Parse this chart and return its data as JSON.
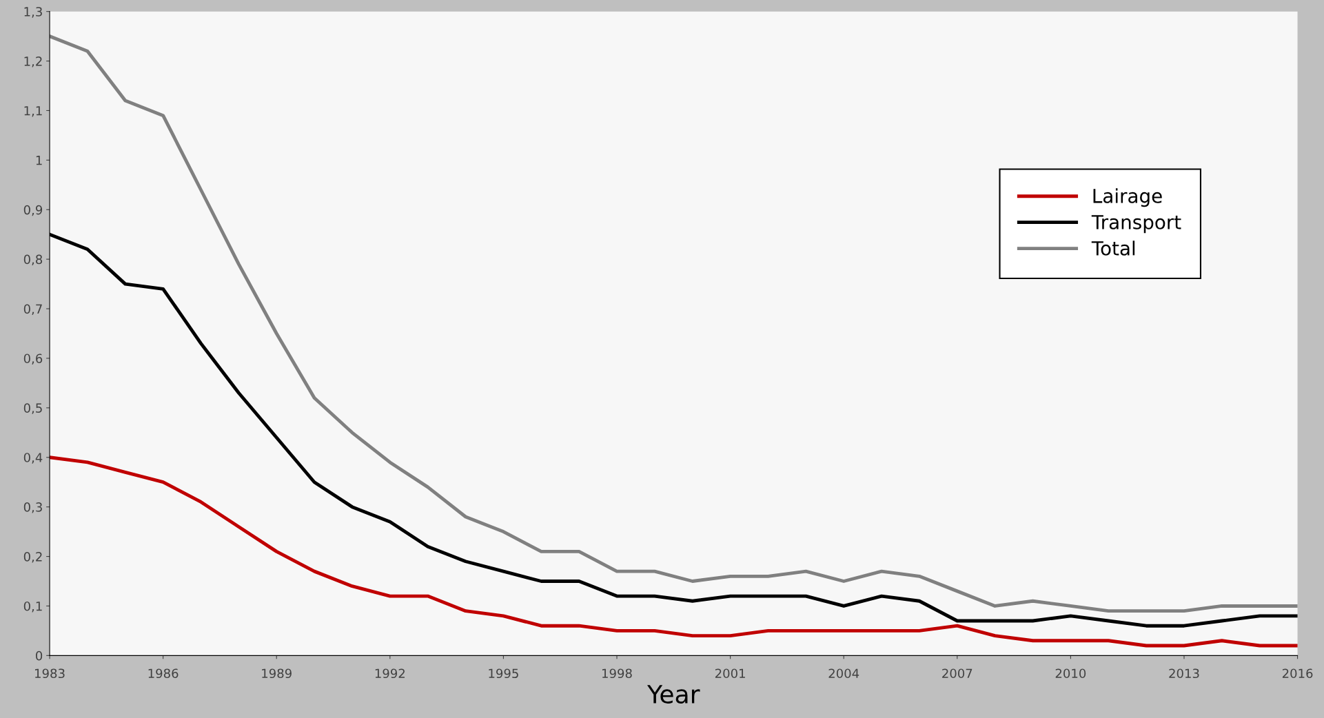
{
  "chart_data": {
    "type": "line",
    "xlabel": "Year",
    "x": [
      1983,
      1984,
      1985,
      1986,
      1987,
      1988,
      1989,
      1990,
      1991,
      1992,
      1993,
      1994,
      1995,
      1996,
      1997,
      1998,
      1999,
      2000,
      2001,
      2002,
      2003,
      2004,
      2005,
      2006,
      2007,
      2008,
      2009,
      2010,
      2011,
      2012,
      2013,
      2014,
      2015,
      2016
    ],
    "series": [
      {
        "name": "Lairage",
        "color": "#c00000",
        "values": [
          0.4,
          0.39,
          0.37,
          0.35,
          0.31,
          0.26,
          0.21,
          0.17,
          0.14,
          0.12,
          0.12,
          0.09,
          0.08,
          0.06,
          0.06,
          0.05,
          0.05,
          0.04,
          0.04,
          0.05,
          0.05,
          0.05,
          0.05,
          0.05,
          0.06,
          0.04,
          0.03,
          0.03,
          0.03,
          0.02,
          0.02,
          0.03,
          0.02,
          0.02
        ]
      },
      {
        "name": "Transport",
        "color": "#000000",
        "values": [
          0.85,
          0.82,
          0.75,
          0.74,
          0.63,
          0.53,
          0.44,
          0.35,
          0.3,
          0.27,
          0.22,
          0.19,
          0.17,
          0.15,
          0.15,
          0.12,
          0.12,
          0.11,
          0.12,
          0.12,
          0.12,
          0.1,
          0.12,
          0.11,
          0.07,
          0.07,
          0.07,
          0.08,
          0.07,
          0.06,
          0.06,
          0.07,
          0.08,
          0.08
        ]
      },
      {
        "name": "Total",
        "color": "#808080",
        "values": [
          1.25,
          1.22,
          1.12,
          1.09,
          0.94,
          0.79,
          0.65,
          0.52,
          0.45,
          0.39,
          0.34,
          0.28,
          0.25,
          0.21,
          0.21,
          0.17,
          0.17,
          0.15,
          0.16,
          0.16,
          0.17,
          0.15,
          0.17,
          0.16,
          0.13,
          0.1,
          0.11,
          0.1,
          0.09,
          0.09,
          0.09,
          0.1,
          0.1,
          0.1
        ]
      }
    ],
    "xlim": [
      1983,
      2016
    ],
    "xticks": [
      1983,
      1986,
      1989,
      1992,
      1995,
      1998,
      2001,
      2004,
      2007,
      2010,
      2013,
      2016
    ],
    "ylim": [
      0,
      1.3
    ],
    "yticks": [
      0,
      {
        "value": 0.1,
        "label": "0,1"
      },
      {
        "value": 0.2,
        "label": "0,2"
      },
      {
        "value": 0.3,
        "label": "0,3"
      },
      {
        "value": 0.4,
        "label": "0,4"
      },
      {
        "value": 0.5,
        "label": "0,5"
      },
      {
        "value": 0.6,
        "label": "0,6"
      },
      {
        "value": 0.7,
        "label": "0,7"
      },
      {
        "value": 0.8,
        "label": "0,8"
      },
      {
        "value": 0.9,
        "label": "0,9"
      },
      1,
      {
        "value": 1.1,
        "label": "1,1"
      },
      {
        "value": 1.2,
        "label": "1,2"
      },
      {
        "value": 1.3,
        "label": "1,3"
      }
    ],
    "legend": "top right",
    "grid": false,
    "marker": "none",
    "line_style": "solid"
  }
}
